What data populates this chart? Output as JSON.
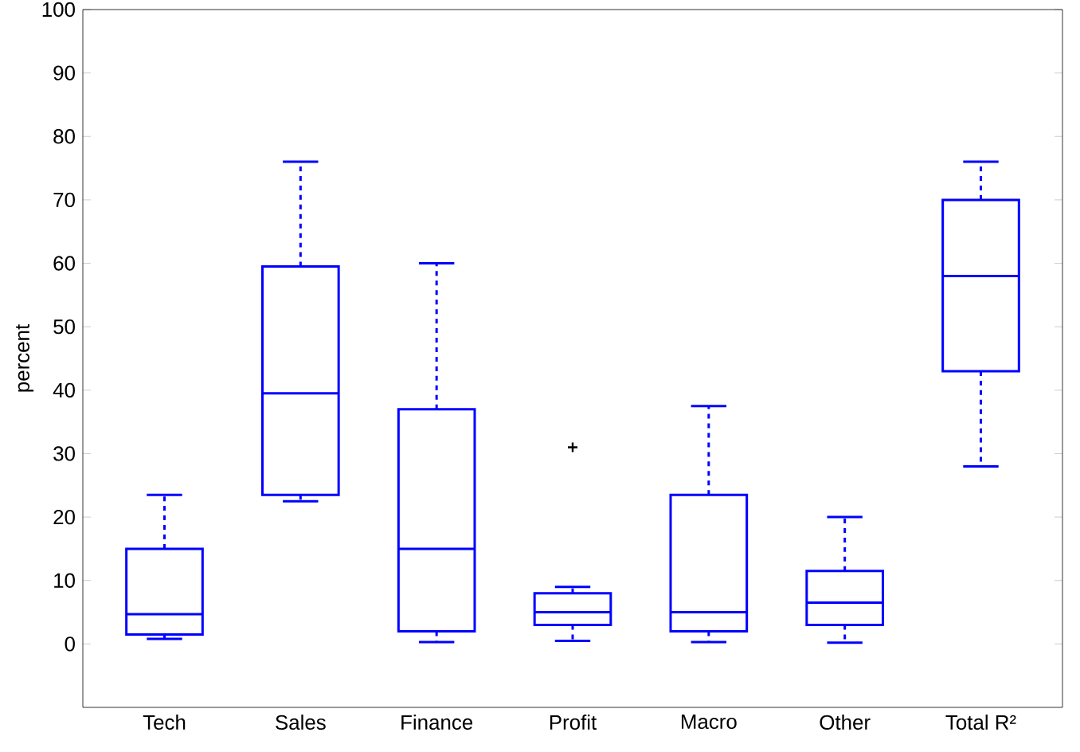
{
  "chart_data": {
    "type": "box",
    "ylabel": "percent",
    "categories": [
      "Tech",
      "Sales",
      "Finance",
      "Profit",
      "Macro",
      "Other",
      "Total R²"
    ],
    "series": [
      {
        "color": "#0000ff",
        "line_style": "dashed",
        "boxes": [
          {
            "low": 0.8,
            "q1": 1.5,
            "median": 4.7,
            "q3": 15,
            "high": 23.5
          },
          {
            "low": 22.5,
            "q1": 23.5,
            "median": 39.5,
            "q3": 59.5,
            "high": 76
          },
          {
            "low": 0.3,
            "q1": 2,
            "median": 15,
            "q3": 37,
            "high": 60
          },
          {
            "low": 0.5,
            "q1": 3,
            "median": 5,
            "q3": 8,
            "high": 9,
            "outliers": [
              31
            ]
          },
          {
            "low": 0.3,
            "q1": 2,
            "median": 5,
            "q3": 23.5,
            "high": 37.5
          },
          {
            "low": 0.2,
            "q1": 3,
            "median": 6.5,
            "q3": 11.5,
            "high": 20
          },
          {
            "low": 28,
            "q1": 43,
            "median": 58,
            "q3": 70,
            "high": 76
          }
        ]
      }
    ],
    "ylim": [
      -10,
      100
    ],
    "yticks": [
      0,
      10,
      20,
      30,
      40,
      50,
      60,
      70,
      80,
      90,
      100
    ],
    "grid": false
  }
}
